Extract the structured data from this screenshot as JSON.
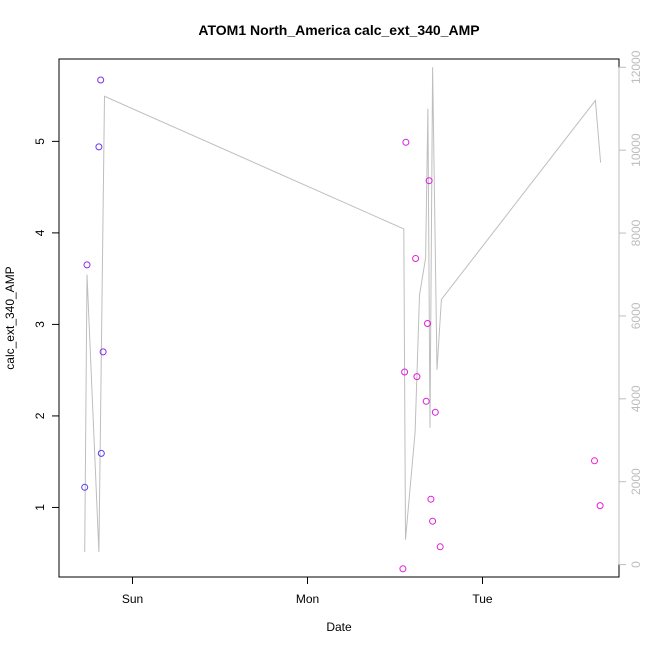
{
  "chart_data": {
    "type": "scatter",
    "title": "ATOM1 North_America calc_ext_340_AMP",
    "xlabel": "Date",
    "ylabel": "calc_ext_340_AMP",
    "x_ticks": [
      {
        "label": "Sun",
        "day": 1.0
      },
      {
        "label": "Mon",
        "day": 2.0
      },
      {
        "label": "Tue",
        "day": 3.0
      }
    ],
    "xlim_days": [
      0.58,
      3.78
    ],
    "ylim": [
      0.24,
      5.9
    ],
    "y_ticks": [
      1,
      2,
      3,
      4,
      5
    ],
    "y2lim": [
      -300,
      12200
    ],
    "y2_ticks": [
      0,
      2000,
      4000,
      6000,
      8000,
      10000,
      12000
    ],
    "grid": false,
    "legend": "none",
    "colors": {
      "line": "#bebebe",
      "axis": "#000000",
      "right_axis": "#bdbdbd"
    },
    "series": [
      {
        "kind": "points",
        "points": [
          {
            "day": 0.727,
            "value": 1.22,
            "color": "#5a3ee8"
          },
          {
            "day": 0.74,
            "value": 3.65,
            "color": "#8a2df0"
          },
          {
            "day": 0.808,
            "value": 4.94,
            "color": "#6a35ec"
          },
          {
            "day": 0.818,
            "value": 5.67,
            "color": "#7a30ee"
          },
          {
            "day": 0.822,
            "value": 1.59,
            "color": "#5e3aea"
          },
          {
            "day": 0.832,
            "value": 2.7,
            "color": "#8a2cf0"
          },
          {
            "day": 2.545,
            "value": 0.33,
            "color": "#e11ed9"
          },
          {
            "day": 2.555,
            "value": 2.48,
            "color": "#d81fdc"
          },
          {
            "day": 2.562,
            "value": 4.99,
            "color": "#d21fde"
          },
          {
            "day": 2.618,
            "value": 3.72,
            "color": "#e81dd6"
          },
          {
            "day": 2.625,
            "value": 2.43,
            "color": "#df1ed9"
          },
          {
            "day": 2.678,
            "value": 2.16,
            "color": "#da1fdb"
          },
          {
            "day": 2.686,
            "value": 3.01,
            "color": "#e31dd8"
          },
          {
            "day": 2.695,
            "value": 4.57,
            "color": "#d81fdc"
          },
          {
            "day": 2.705,
            "value": 1.09,
            "color": "#e01ed9"
          },
          {
            "day": 2.715,
            "value": 0.85,
            "color": "#df1eda"
          },
          {
            "day": 2.73,
            "value": 2.04,
            "color": "#d31fdd"
          },
          {
            "day": 2.758,
            "value": 0.57,
            "color": "#e41dd7"
          },
          {
            "day": 3.64,
            "value": 1.51,
            "color": "#f21bd2"
          },
          {
            "day": 3.672,
            "value": 1.02,
            "color": "#ec1cd4"
          }
        ]
      },
      {
        "kind": "line",
        "axis": "right",
        "points": [
          {
            "day": 0.727,
            "value": 300
          },
          {
            "day": 0.74,
            "value": 7000
          },
          {
            "day": 0.808,
            "value": 300
          },
          {
            "day": 0.84,
            "value": 11300
          },
          {
            "day": 2.55,
            "value": 8100
          },
          {
            "day": 2.56,
            "value": 600
          },
          {
            "day": 2.615,
            "value": 3200
          },
          {
            "day": 2.64,
            "value": 6500
          },
          {
            "day": 2.675,
            "value": 7400
          },
          {
            "day": 2.688,
            "value": 11000
          },
          {
            "day": 2.7,
            "value": 3300
          },
          {
            "day": 2.715,
            "value": 12000
          },
          {
            "day": 2.74,
            "value": 4700
          },
          {
            "day": 2.765,
            "value": 6400
          },
          {
            "day": 3.645,
            "value": 11200
          },
          {
            "day": 3.675,
            "value": 9700
          }
        ]
      }
    ]
  }
}
